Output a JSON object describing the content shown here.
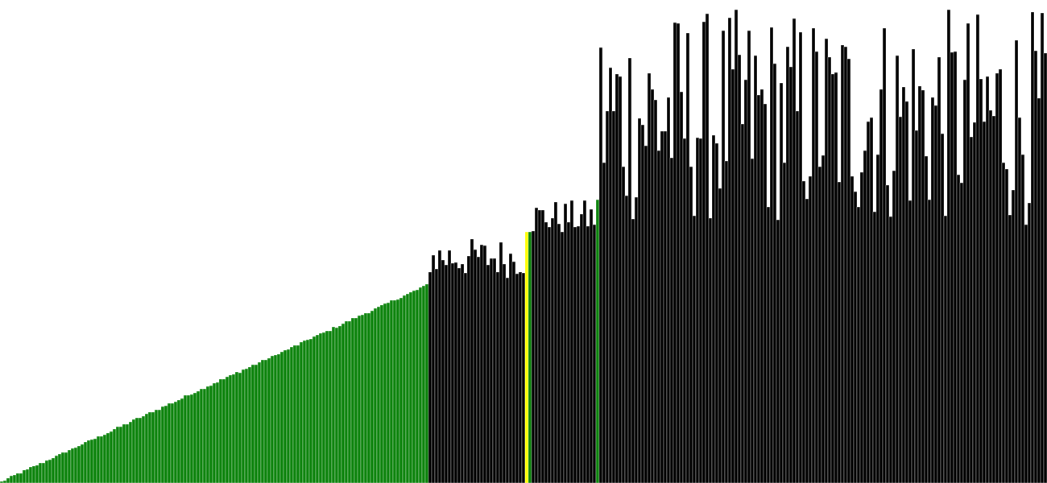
{
  "visualizer": {
    "canvas_height": 600,
    "bar_count": 325,
    "colors": {
      "sorted": "#0a820a",
      "unsorted": "#000000",
      "highlight": "#ffff00",
      "background": "#ffffff",
      "bar_gap": "#ffffff"
    },
    "states": {
      "sorted_prefix_count": 133,
      "highlight_indices": [
        163
      ],
      "pivot_indices": [
        164,
        185
      ]
    },
    "value_model": {
      "sorted_start": 2,
      "sorted_end": 246,
      "segments": [
        {
          "start_index": 133,
          "end_index": 163,
          "base": 280,
          "jitter": 25
        },
        {
          "start_index": 165,
          "end_index": 185,
          "base": 330,
          "jitter": 22
        },
        {
          "start_index": 186,
          "end_index": 325,
          "base": 455,
          "jitter": 135
        }
      ],
      "highlight_value": 312,
      "pivot_values": [
        312,
        352
      ]
    }
  }
}
